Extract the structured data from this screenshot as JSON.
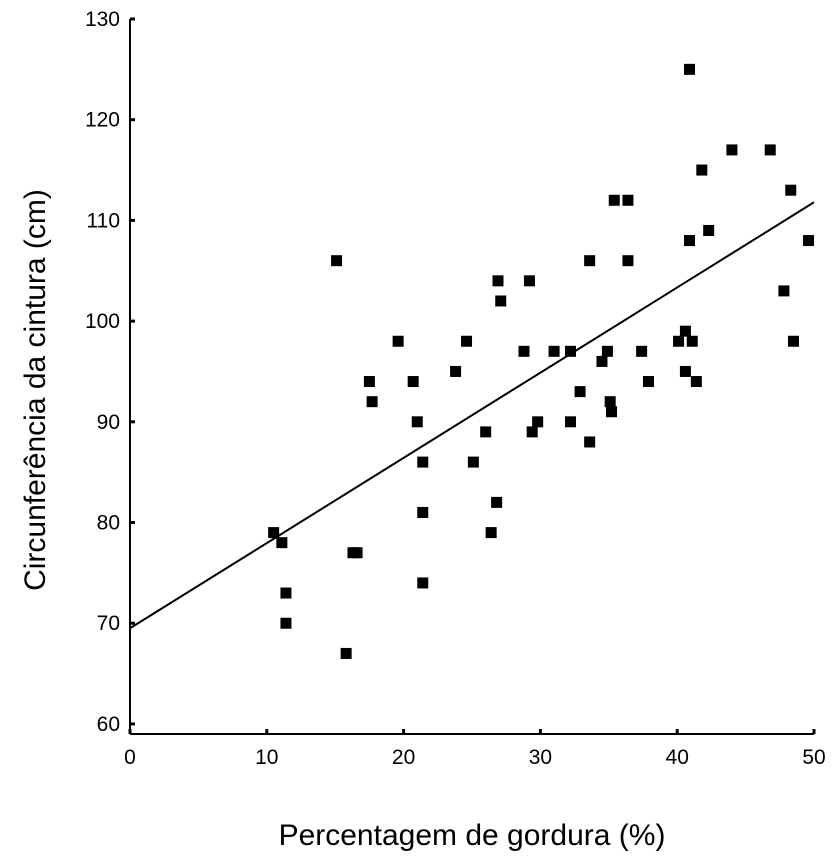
{
  "chart_data": {
    "type": "scatter",
    "title": "",
    "xlabel": "Percentagem de gordura (%)",
    "ylabel": "Circunferência da cintura (cm)",
    "xlim": [
      0,
      50
    ],
    "ylim": [
      59,
      130
    ],
    "xticks": [
      0,
      10,
      20,
      30,
      40,
      50
    ],
    "yticks": [
      60,
      70,
      80,
      90,
      100,
      110,
      120,
      130
    ],
    "grid": false,
    "legend": "none",
    "marker": "square",
    "color": "#000000",
    "points": [
      [
        10.5,
        79
      ],
      [
        11.1,
        78
      ],
      [
        11.4,
        73
      ],
      [
        11.4,
        70
      ],
      [
        15.1,
        106
      ],
      [
        15.8,
        67
      ],
      [
        16.3,
        77
      ],
      [
        16.6,
        77
      ],
      [
        17.5,
        94
      ],
      [
        17.7,
        92
      ],
      [
        19.6,
        98
      ],
      [
        20.7,
        94
      ],
      [
        21.0,
        90
      ],
      [
        21.4,
        86
      ],
      [
        21.4,
        81
      ],
      [
        21.4,
        74
      ],
      [
        23.8,
        95
      ],
      [
        24.6,
        98
      ],
      [
        25.1,
        86
      ],
      [
        26.0,
        89
      ],
      [
        26.4,
        79
      ],
      [
        26.8,
        82
      ],
      [
        26.9,
        104
      ],
      [
        27.1,
        102
      ],
      [
        28.8,
        97
      ],
      [
        29.2,
        104
      ],
      [
        29.4,
        89
      ],
      [
        29.8,
        90
      ],
      [
        31.0,
        97
      ],
      [
        32.2,
        97
      ],
      [
        32.2,
        90
      ],
      [
        32.9,
        93
      ],
      [
        33.6,
        106
      ],
      [
        33.6,
        88
      ],
      [
        34.5,
        96
      ],
      [
        34.9,
        97
      ],
      [
        35.1,
        92
      ],
      [
        35.2,
        91
      ],
      [
        35.4,
        112
      ],
      [
        36.4,
        112
      ],
      [
        36.4,
        106
      ],
      [
        37.4,
        97
      ],
      [
        37.9,
        94
      ],
      [
        40.1,
        98
      ],
      [
        40.6,
        99
      ],
      [
        40.6,
        95
      ],
      [
        40.9,
        125
      ],
      [
        40.9,
        108
      ],
      [
        41.1,
        98
      ],
      [
        41.4,
        94
      ],
      [
        41.8,
        115
      ],
      [
        42.3,
        109
      ],
      [
        44.0,
        117
      ],
      [
        46.8,
        117
      ],
      [
        47.8,
        103
      ],
      [
        48.3,
        113
      ],
      [
        48.5,
        98
      ],
      [
        49.6,
        108
      ]
    ],
    "trendline": {
      "x": [
        0,
        50
      ],
      "y": [
        69.5,
        111.8
      ]
    }
  }
}
